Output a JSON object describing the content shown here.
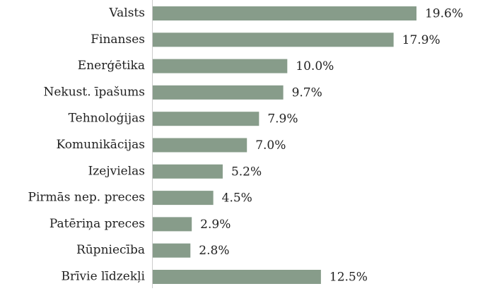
{
  "chart_data": {
    "type": "bar",
    "orientation": "horizontal",
    "categories": [
      "Valsts",
      "Finanses",
      "Enerģētika",
      "Nekust. īpašums",
      "Tehnoloģijas",
      "Komunikācijas",
      "Izejvielas",
      "Pirmās nep. preces",
      "Patēriņa preces",
      "Rūpniecība",
      "Brīvie līdzekļi"
    ],
    "values": [
      19.6,
      17.9,
      10.0,
      9.7,
      7.9,
      7.0,
      5.2,
      4.5,
      2.9,
      2.8,
      12.5
    ],
    "value_labels": [
      "19.6%",
      "17.9%",
      "10.0%",
      "9.7%",
      "7.9%",
      "7.0%",
      "5.2%",
      "4.5%",
      "2.9%",
      "2.8%",
      "12.5%"
    ],
    "color": "#879c8a"
  }
}
